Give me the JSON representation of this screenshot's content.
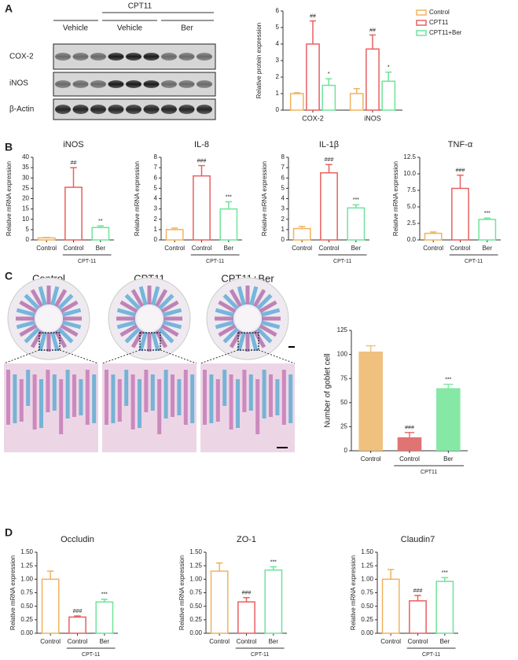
{
  "panel_labels": [
    "A",
    "B",
    "C",
    "D"
  ],
  "blot": {
    "group_label": "CPT11",
    "lane_groups": [
      "Vehicle",
      "Vehicle",
      "Ber"
    ],
    "rows": [
      "COX-2",
      "iNOS",
      "β-Actin"
    ]
  },
  "histology": {
    "titles": [
      "Control",
      "CPT11",
      "CPT11+Ber"
    ]
  },
  "chart_data": [
    {
      "type": "bar",
      "ylabel": "Relative protein expression",
      "categories": [
        "COX-2",
        "iNOS"
      ],
      "series": [
        {
          "name": "Control",
          "color": "#f2b25e",
          "values": [
            1.0,
            1.0
          ],
          "errors": [
            0.05,
            0.3
          ],
          "annotations": [
            null,
            null
          ]
        },
        {
          "name": "CPT11",
          "color": "#e8605f",
          "values": [
            4.0,
            3.7
          ],
          "errors": [
            1.4,
            0.85
          ],
          "annotations": [
            "##",
            "##"
          ]
        },
        {
          "name": "CPT11+Ber",
          "color": "#6fe39a",
          "values": [
            1.5,
            1.75
          ],
          "errors": [
            0.4,
            0.55
          ],
          "annotations": [
            "*",
            "*"
          ]
        }
      ],
      "ylim": [
        0,
        6
      ],
      "yticks": [
        0,
        1,
        2,
        3,
        4,
        5,
        6
      ],
      "legend": "upper right"
    },
    {
      "type": "bar",
      "title": "iNOS",
      "ylabel": "Relative mRNA expression",
      "categories": [
        "Control",
        "Control",
        "Ber"
      ],
      "group_label": "CPT-11",
      "values": [
        1.0,
        25.5,
        6.0
      ],
      "errors": [
        0.2,
        9.5,
        0.8
      ],
      "colors": [
        "#f2b25e",
        "#e8605f",
        "#6fe39a"
      ],
      "annotations": [
        null,
        "##",
        "**"
      ],
      "ylim": [
        0,
        40
      ],
      "yticks": [
        0,
        5,
        10,
        15,
        20,
        25,
        30,
        35,
        40
      ]
    },
    {
      "type": "bar",
      "title": "IL-8",
      "ylabel": "Relative mRNA expression",
      "categories": [
        "Control",
        "Control",
        "Ber"
      ],
      "group_label": "CPT-11",
      "values": [
        1.0,
        6.2,
        3.0
      ],
      "errors": [
        0.15,
        1.0,
        0.7
      ],
      "colors": [
        "#f2b25e",
        "#e8605f",
        "#6fe39a"
      ],
      "annotations": [
        null,
        "###",
        "***"
      ],
      "ylim": [
        0,
        8
      ],
      "yticks": [
        0,
        1,
        2,
        3,
        4,
        5,
        6,
        7,
        8
      ]
    },
    {
      "type": "bar",
      "title": "IL-1β",
      "ylabel": "Relative mRNA expression",
      "categories": [
        "Control",
        "Control",
        "Ber"
      ],
      "group_label": "CPT-11",
      "values": [
        1.1,
        6.5,
        3.1
      ],
      "errors": [
        0.2,
        0.8,
        0.3
      ],
      "colors": [
        "#f2b25e",
        "#e8605f",
        "#6fe39a"
      ],
      "annotations": [
        null,
        "###",
        "***"
      ],
      "ylim": [
        0,
        8
      ],
      "yticks": [
        0,
        1,
        2,
        3,
        4,
        5,
        6,
        7,
        8
      ]
    },
    {
      "type": "bar",
      "title": "TNF-α",
      "ylabel": "Relative mRNA expression",
      "categories": [
        "Control",
        "Control",
        "Ber"
      ],
      "group_label": "CPT-11",
      "values": [
        1.0,
        7.8,
        3.1
      ],
      "errors": [
        0.2,
        2.0,
        0.2
      ],
      "colors": [
        "#f2b25e",
        "#e8605f",
        "#6fe39a"
      ],
      "annotations": [
        null,
        "###",
        "***"
      ],
      "ylim": [
        0,
        12.5
      ],
      "yticks": [
        {
          "value": 0,
          "label": "0.0"
        },
        2.5,
        {
          "value": 5,
          "label": "5.0"
        },
        7.5,
        {
          "value": 10,
          "label": "10.0"
        },
        12.5
      ]
    },
    {
      "type": "bar",
      "ylabel": "Number of goblet cell",
      "categories": [
        "Control",
        "Control",
        "Ber"
      ],
      "group_label": "CPT11",
      "filled": true,
      "values": [
        103,
        14,
        65
      ],
      "errors": [
        6,
        5,
        4
      ],
      "colors": [
        "#f0c07e",
        "#e07472",
        "#85e8a5"
      ],
      "annotations": [
        null,
        "###",
        "***"
      ],
      "ylim": [
        0,
        125
      ],
      "yticks": [
        0,
        25,
        50,
        75,
        100,
        125
      ]
    },
    {
      "type": "bar",
      "title": "Occludin",
      "ylabel": "Relative mRNA expression",
      "categories": [
        "Control",
        "Control",
        "Ber"
      ],
      "group_label": "CPT-11",
      "values": [
        1.0,
        0.3,
        0.58
      ],
      "errors": [
        0.15,
        0.02,
        0.05
      ],
      "colors": [
        "#f2b25e",
        "#e8605f",
        "#6fe39a"
      ],
      "annotations": [
        null,
        "###",
        "***"
      ],
      "ylim": [
        0,
        1.5
      ],
      "yticks": [
        {
          "value": 0,
          "label": "0.00"
        },
        0.25,
        {
          "value": 0.5,
          "label": "0.50"
        },
        0.75,
        {
          "value": 1,
          "label": "1.00"
        },
        1.25,
        {
          "value": 1.5,
          "label": "1.50"
        }
      ]
    },
    {
      "type": "bar",
      "title": "ZO-1",
      "ylabel": "Relative mRNA expression",
      "categories": [
        "Control",
        "Control",
        "Ber"
      ],
      "group_label": "CPT-11",
      "values": [
        1.15,
        0.58,
        1.17
      ],
      "errors": [
        0.15,
        0.08,
        0.06
      ],
      "colors": [
        "#f2b25e",
        "#e8605f",
        "#6fe39a"
      ],
      "annotations": [
        null,
        "###",
        "***"
      ],
      "ylim": [
        0,
        1.5
      ],
      "yticks": [
        {
          "value": 0,
          "label": "0.00"
        },
        0.25,
        {
          "value": 0.5,
          "label": "0.50"
        },
        0.75,
        {
          "value": 1,
          "label": "1.00"
        },
        1.25,
        {
          "value": 1.5,
          "label": "1.50"
        }
      ]
    },
    {
      "type": "bar",
      "title": "Claudin7",
      "ylabel": "Relative mRNA expression",
      "categories": [
        "Control",
        "Control",
        "Ber"
      ],
      "group_label": "CPT-11",
      "values": [
        1.0,
        0.6,
        0.96
      ],
      "errors": [
        0.18,
        0.1,
        0.07
      ],
      "colors": [
        "#f2b25e",
        "#e8605f",
        "#6fe39a"
      ],
      "annotations": [
        null,
        "###",
        "***"
      ],
      "ylim": [
        0,
        1.5
      ],
      "yticks": [
        {
          "value": 0,
          "label": "0.00"
        },
        0.25,
        {
          "value": 0.5,
          "label": "0.50"
        },
        0.75,
        {
          "value": 1,
          "label": "1.00"
        },
        1.25,
        {
          "value": 1.5,
          "label": "1.50"
        }
      ]
    }
  ]
}
